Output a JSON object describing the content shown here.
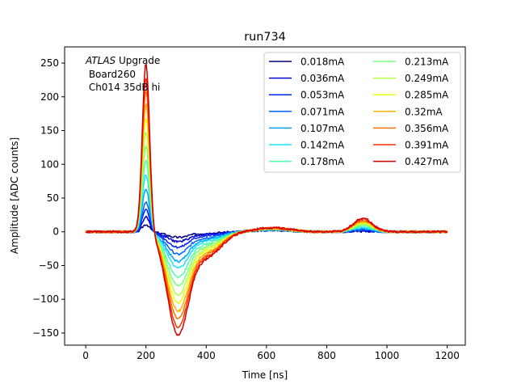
{
  "chart_data": {
    "type": "line",
    "title": "run734",
    "xlabel": "Time [ns]",
    "ylabel": "Amplitude [ADC counts]",
    "xlim": [
      -70,
      1260
    ],
    "ylim": [
      -168,
      274
    ],
    "xticks": [
      0,
      200,
      400,
      600,
      800,
      1000,
      1200
    ],
    "yticks": [
      -150,
      -100,
      -50,
      0,
      50,
      100,
      150,
      200,
      250
    ],
    "grid": false,
    "legend_position": "top-right",
    "legend_columns": 2,
    "annotation": {
      "italic_part": "ATLAS",
      "normal_part": " Upgrade",
      "line2": " Board260",
      "line3": " Ch014 35dB hi"
    },
    "series": [
      {
        "name": "0.018mA",
        "color": "#00007f",
        "peak": 11,
        "trough": -8
      },
      {
        "name": "0.036mA",
        "color": "#0000d1",
        "peak": 22,
        "trough": -14
      },
      {
        "name": "0.053mA",
        "color": "#0020ff",
        "peak": 33,
        "trough": -22
      },
      {
        "name": "0.071mA",
        "color": "#0064ff",
        "peak": 45,
        "trough": -32
      },
      {
        "name": "0.107mA",
        "color": "#00a4ff",
        "peak": 64,
        "trough": -42
      },
      {
        "name": "0.142mA",
        "color": "#18e5ff",
        "peak": 85,
        "trough": -52
      },
      {
        "name": "0.178mA",
        "color": "#4dffaa",
        "peak": 106,
        "trough": -65
      },
      {
        "name": "0.213mA",
        "color": "#7dff7a",
        "peak": 128,
        "trough": -77
      },
      {
        "name": "0.249mA",
        "color": "#b4ff43",
        "peak": 149,
        "trough": -90
      },
      {
        "name": "0.285mA",
        "color": "#eaff0d",
        "peak": 170,
        "trough": -101
      },
      {
        "name": "0.32mA",
        "color": "#ffb200",
        "peak": 190,
        "trough": -113
      },
      {
        "name": "0.356mA",
        "color": "#ff7300",
        "peak": 210,
        "trough": -124
      },
      {
        "name": "0.391mA",
        "color": "#ff3000",
        "peak": 230,
        "trough": -136
      },
      {
        "name": "0.427mA",
        "color": "#d10000",
        "peak": 252,
        "trough": -147
      }
    ]
  }
}
